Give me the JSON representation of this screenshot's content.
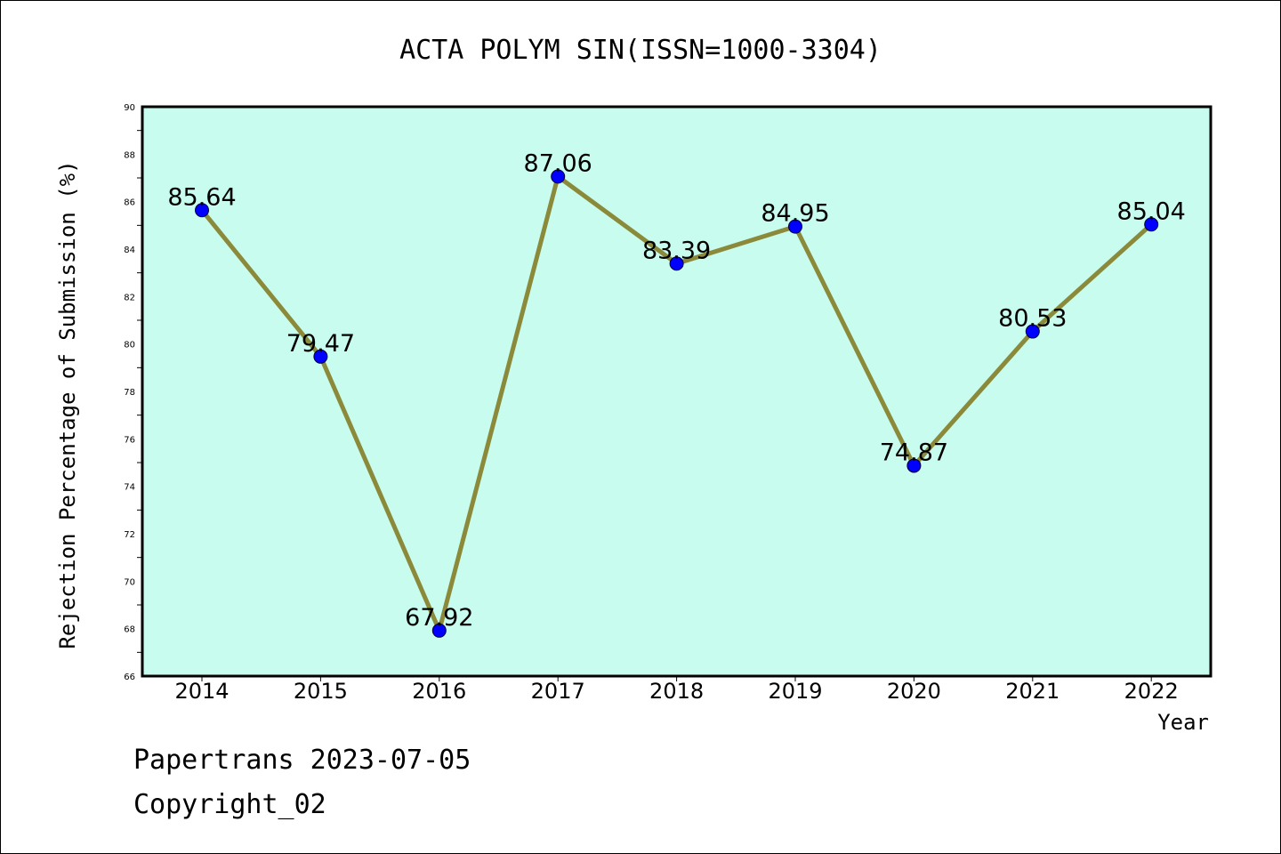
{
  "chart_data": {
    "type": "line",
    "title": "ACTA POLYM SIN(ISSN=1000-3304)",
    "xlabel": "Year",
    "ylabel": "Rejection Percentage of Submission (%)",
    "categories": [
      "2014",
      "2015",
      "2016",
      "2017",
      "2018",
      "2019",
      "2020",
      "2021",
      "2022"
    ],
    "values": [
      85.64,
      79.47,
      67.92,
      87.06,
      83.39,
      84.95,
      74.87,
      80.53,
      85.04
    ],
    "data_labels": [
      "85.64",
      "79.47",
      "67.92",
      "87.06",
      "83.39",
      "84.95",
      "74.87",
      "80.53",
      "85.04"
    ],
    "ylim": [
      66,
      90
    ],
    "y_ticks": [
      "66",
      "68",
      "70",
      "72",
      "74",
      "76",
      "78",
      "80",
      "82",
      "84",
      "86",
      "88",
      "90"
    ],
    "grid": false,
    "legend": "none",
    "colors": {
      "plot_background": "#c8fcee",
      "line": "#8b8a3a",
      "marker": "#0000ff"
    }
  },
  "footer": {
    "line1": "Papertrans 2023-07-05",
    "line2": "Copyright_02"
  }
}
